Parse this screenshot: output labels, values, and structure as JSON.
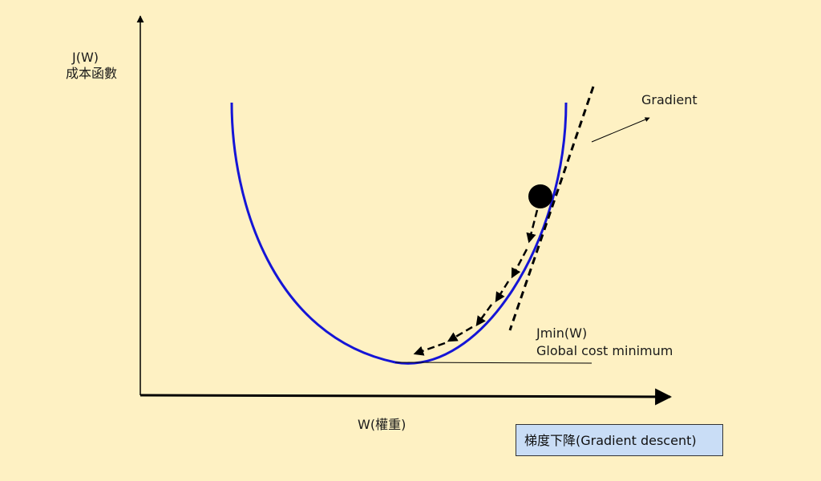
{
  "axes": {
    "y_label_line1": "J(W)",
    "y_label_line2": "成本函數",
    "x_label": "W(權重)"
  },
  "annotations": {
    "gradient": "Gradient",
    "min_line1": "Jmin(W)",
    "min_line2": "Global cost minimum"
  },
  "caption": "梯度下降(Gradient descent)",
  "colors": {
    "background": "#FEF1C3",
    "curve": "#1515D6",
    "caption_bg": "#C9DDF6",
    "ink": "#000000"
  },
  "icons": [
    "ball-marker",
    "arrow-head"
  ]
}
